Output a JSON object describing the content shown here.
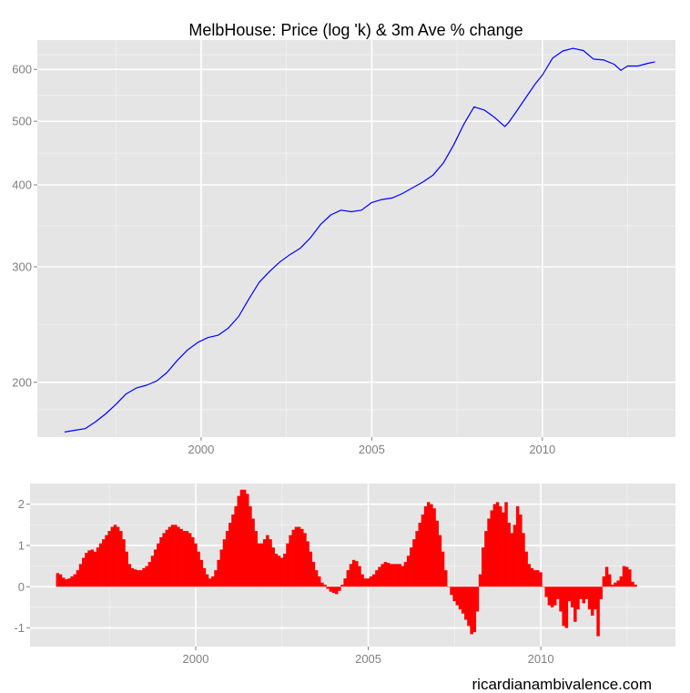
{
  "colors": {
    "panel_bg": "#e5e5e5",
    "grid_major": "#ffffff",
    "grid_minor": "#f2f2f2",
    "price_line": "#0000ff",
    "change_bars": "#ff0000",
    "tick_text": "#7f7f7f"
  },
  "watermark": "ricardianambivalence.com",
  "chart_data": [
    {
      "type": "line",
      "title": "MelbHouse: Price (log 'k) & 3m Ave % change",
      "xlabel": "",
      "ylabel": "",
      "y_scale": "log",
      "xlim": [
        1995.2,
        2013.9
      ],
      "ylim": [
        165,
        665
      ],
      "x_ticks": [
        2000,
        2005,
        2010
      ],
      "x_tick_labels": [
        "2000",
        "2005",
        "2010"
      ],
      "y_ticks": [
        200,
        300,
        400,
        500,
        600
      ],
      "y_tick_labels": [
        "200",
        "300",
        "400",
        "500",
        "600"
      ],
      "grid": true,
      "series": [
        {
          "x": [
            1996.0,
            1996.3,
            1996.6,
            1996.9,
            1997.2,
            1997.5,
            1997.8,
            1998.1,
            1998.4,
            1998.7,
            1999.0,
            1999.3,
            1999.6,
            1999.9,
            2000.2,
            2000.5,
            2000.8,
            2001.1,
            2001.4,
            2001.7,
            2002.0,
            2002.3,
            2002.6,
            2002.9,
            2003.2,
            2003.5,
            2003.8,
            2004.1,
            2004.4,
            2004.7,
            2005.0,
            2005.3,
            2005.6,
            2005.9,
            2006.2,
            2006.5,
            2006.8,
            2007.1,
            2007.4,
            2007.7,
            2008.0,
            2008.3,
            2008.6,
            2008.9,
            2009.0,
            2009.2,
            2009.5,
            2009.8,
            2010.0,
            2010.3,
            2010.6,
            2010.9,
            2011.2,
            2011.5,
            2011.8,
            2012.1,
            2012.3,
            2012.5,
            2012.8,
            2013.1,
            2013.3
          ],
          "values": [
            168,
            169,
            170,
            174,
            179,
            185,
            192,
            196,
            198,
            201,
            207,
            216,
            224,
            230,
            234,
            236,
            242,
            252,
            268,
            284,
            295,
            305,
            313,
            320,
            332,
            348,
            360,
            366,
            364,
            366,
            376,
            380,
            382,
            388,
            396,
            404,
            414,
            432,
            460,
            495,
            526,
            520,
            507,
            491,
            497,
            514,
            542,
            571,
            588,
            624,
            640,
            646,
            641,
            622,
            620,
            611,
            598,
            607,
            607,
            613,
            616
          ]
        }
      ]
    },
    {
      "type": "bar",
      "title": "",
      "xlabel": "",
      "ylabel": "",
      "xlim": [
        1995.2,
        2013.9
      ],
      "ylim": [
        -1.45,
        2.5
      ],
      "x_ticks": [
        2000,
        2005,
        2010
      ],
      "x_tick_labels": [
        "2000",
        "2005",
        "2010"
      ],
      "y_ticks": [
        -1,
        0,
        1,
        2
      ],
      "y_tick_labels": [
        "-1",
        "0",
        "1",
        "2"
      ],
      "grid": true,
      "series": [
        {
          "x_start": 1996.0,
          "step": 0.0833,
          "values": [
            0.33,
            0.3,
            0.22,
            0.18,
            0.2,
            0.25,
            0.3,
            0.4,
            0.55,
            0.7,
            0.82,
            0.88,
            0.9,
            0.85,
            0.95,
            1.05,
            1.15,
            1.25,
            1.35,
            1.45,
            1.5,
            1.45,
            1.35,
            1.15,
            0.85,
            0.55,
            0.45,
            0.42,
            0.4,
            0.4,
            0.45,
            0.5,
            0.6,
            0.75,
            0.9,
            1.05,
            1.2,
            1.3,
            1.38,
            1.45,
            1.5,
            1.5,
            1.45,
            1.4,
            1.35,
            1.35,
            1.3,
            1.2,
            1.05,
            0.85,
            0.65,
            0.45,
            0.3,
            0.2,
            0.25,
            0.4,
            0.65,
            0.9,
            1.15,
            1.35,
            1.55,
            1.75,
            1.95,
            2.2,
            2.35,
            2.35,
            2.25,
            1.95,
            1.65,
            1.35,
            1.05,
            1.05,
            1.15,
            1.25,
            1.15,
            0.95,
            0.8,
            0.75,
            0.7,
            0.8,
            1.05,
            1.25,
            1.38,
            1.45,
            1.45,
            1.4,
            1.3,
            1.1,
            0.85,
            0.6,
            0.4,
            0.25,
            0.1,
            0.05,
            -0.05,
            -0.12,
            -0.15,
            -0.18,
            -0.1,
            0.05,
            0.2,
            0.4,
            0.55,
            0.65,
            0.62,
            0.5,
            0.3,
            0.2,
            0.2,
            0.25,
            0.3,
            0.4,
            0.48,
            0.55,
            0.6,
            0.58,
            0.55,
            0.55,
            0.55,
            0.55,
            0.5,
            0.6,
            0.75,
            0.95,
            1.15,
            1.35,
            1.55,
            1.75,
            1.95,
            2.05,
            2.0,
            1.9,
            1.6,
            1.25,
            0.85,
            0.4,
            0.0,
            -0.2,
            -0.35,
            -0.45,
            -0.55,
            -0.65,
            -0.8,
            -0.95,
            -1.15,
            -1.1,
            -0.6,
            0.3,
            0.95,
            1.35,
            1.65,
            1.85,
            2.0,
            2.05,
            1.95,
            1.8,
            2.05,
            1.55,
            1.3,
            1.5,
            1.95,
            1.75,
            1.3,
            0.85,
            0.55,
            0.45,
            0.4,
            0.4,
            0.35,
            0.0,
            -0.25,
            -0.45,
            -0.5,
            -0.45,
            -0.3,
            -0.6,
            -0.95,
            -1.0,
            -0.35,
            -0.5,
            -0.85,
            -0.55,
            -0.3,
            -0.4,
            -0.3,
            -0.55,
            -0.7,
            -0.55,
            -1.2,
            -0.3,
            0.25,
            0.48,
            0.3,
            0.05,
            0.1,
            0.15,
            0.25,
            0.5,
            0.48,
            0.42,
            0.12,
            0.05
          ]
        }
      ]
    }
  ]
}
